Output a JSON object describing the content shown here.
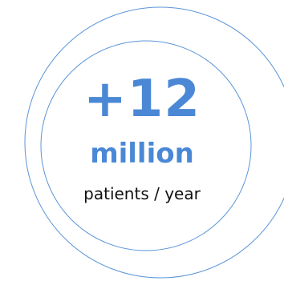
{
  "stat": {
    "value": "+12",
    "unit": "million",
    "caption": "patients / year"
  },
  "colors": {
    "accent": "#4a88d6",
    "ring": "#5b95d8",
    "caption": "#111111",
    "background": "#ffffff"
  }
}
